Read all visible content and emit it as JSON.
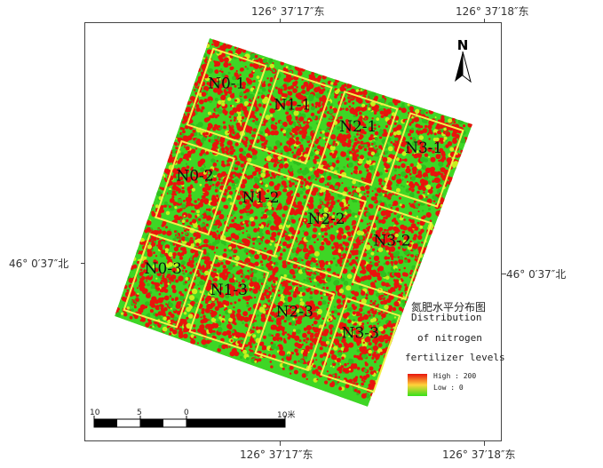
{
  "coords": {
    "top_left": "126° 37′17″东",
    "top_right": "126° 37′18″东",
    "bottom_left": "126° 37′17″东",
    "bottom_right": "126° 37′18″东",
    "left_lat": "46° 0′37″北",
    "right_lat": "46° 0′37″北"
  },
  "north_arrow": {
    "label": "N",
    "icon": "north-arrow-icon"
  },
  "plots": [
    [
      "N0-1",
      "N1-1",
      "N2-1",
      "N3-1"
    ],
    [
      "N0-2",
      "N1-2",
      "N2-2",
      "N3-2"
    ],
    [
      "N0-3",
      "N1-3",
      "N2-3",
      "N3-3"
    ]
  ],
  "legend": {
    "title_cn": "氮肥水平分布图",
    "title_en_1": "Distribution",
    "title_en_2": "of nitrogen",
    "title_en_3": "fertilizer levels",
    "high_label": "High : 200",
    "low_label": "Low : 0",
    "high_color": "#e8140c",
    "low_color": "#35e01a"
  },
  "scale_bar": {
    "labels": [
      "10",
      "5",
      "0",
      "10"
    ],
    "unit": "米"
  }
}
